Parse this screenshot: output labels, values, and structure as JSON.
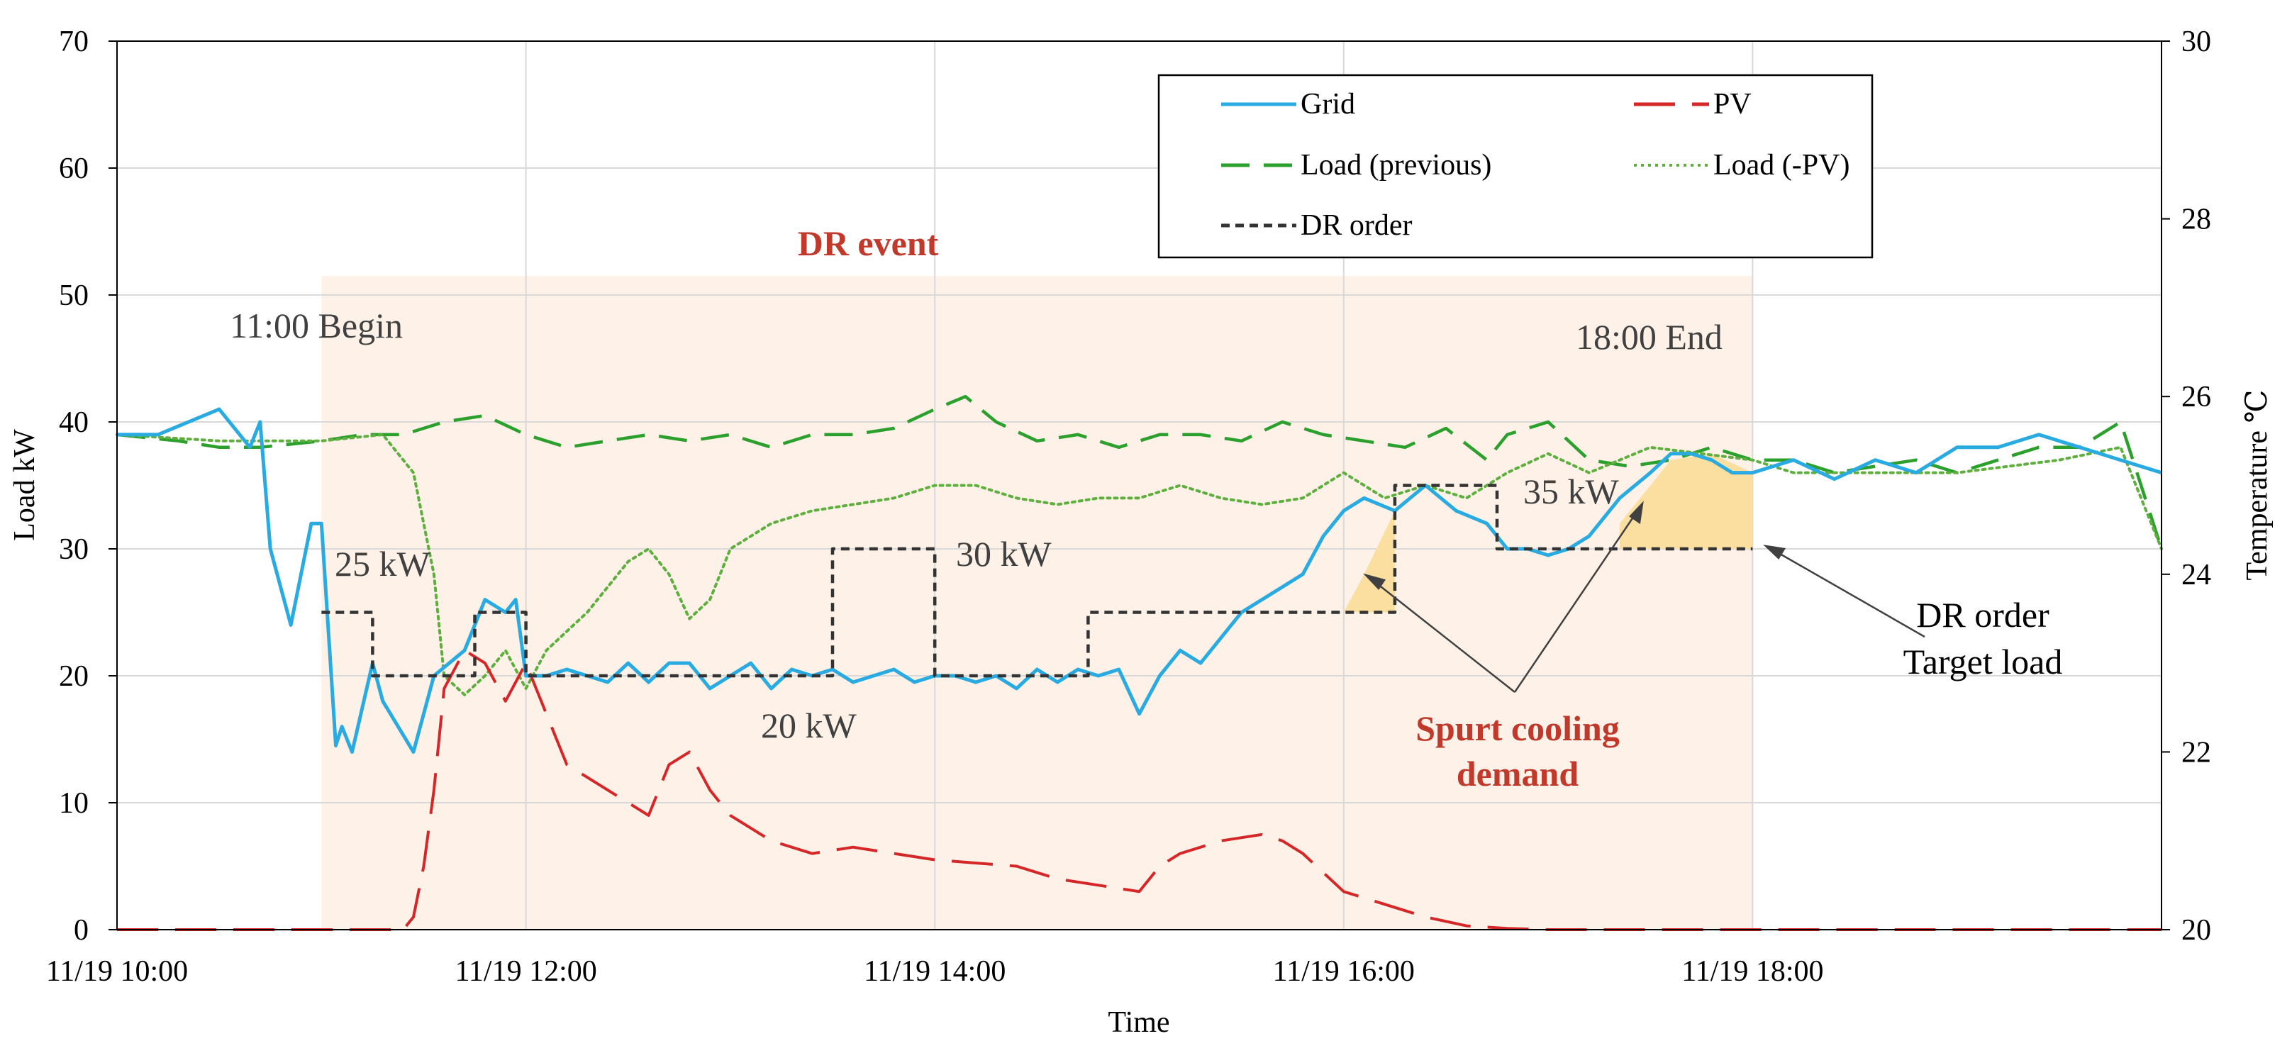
{
  "chart_data": {
    "type": "line",
    "xlabel": "Time",
    "ylabel": "Load kW",
    "y2label": "Temperature ℃",
    "xlim": [
      10.0,
      20.0
    ],
    "ylim": [
      0,
      70
    ],
    "y2lim": [
      20,
      30
    ],
    "x_ticks": [
      {
        "t": 10,
        "label": "11/19 10:00"
      },
      {
        "t": 12,
        "label": "11/19 12:00"
      },
      {
        "t": 14,
        "label": "11/19 14:00"
      },
      {
        "t": 16,
        "label": "11/19 16:00"
      },
      {
        "t": 18,
        "label": "11/19 18:00"
      }
    ],
    "y_ticks": [
      "0",
      "10",
      "20",
      "30",
      "40",
      "50",
      "60",
      "70"
    ],
    "y2_ticks": [
      "20",
      "22",
      "24",
      "26",
      "28",
      "30"
    ],
    "grid": true,
    "legend_position": "top-right",
    "series": [
      {
        "key": "grid",
        "name": "Grid",
        "color": "#29ABE2",
        "style": "solid",
        "t": [
          10.0,
          10.2,
          10.5,
          10.65,
          10.7,
          10.75,
          10.85,
          10.95,
          11.0,
          11.07,
          11.1,
          11.15,
          11.25,
          11.3,
          11.45,
          11.55,
          11.7,
          11.8,
          11.9,
          11.95,
          12.0,
          12.1,
          12.2,
          12.3,
          12.4,
          12.5,
          12.6,
          12.7,
          12.8,
          12.9,
          13.0,
          13.1,
          13.2,
          13.3,
          13.4,
          13.5,
          13.6,
          13.7,
          13.8,
          13.9,
          14.0,
          14.1,
          14.2,
          14.3,
          14.4,
          14.5,
          14.6,
          14.7,
          14.8,
          14.9,
          15.0,
          15.1,
          15.2,
          15.3,
          15.5,
          15.6,
          15.7,
          15.8,
          15.9,
          16.0,
          16.1,
          16.25,
          16.4,
          16.55,
          16.7,
          16.8,
          16.9,
          17.0,
          17.1,
          17.2,
          17.35,
          17.5,
          17.6,
          17.7,
          17.8,
          17.9,
          18.0,
          18.2,
          18.4,
          18.6,
          18.8,
          19.0,
          19.2,
          19.4,
          19.6,
          19.8,
          20.0
        ],
        "v": [
          39,
          39,
          41,
          38,
          40,
          30,
          24,
          32,
          32,
          14.5,
          16,
          14,
          21,
          18,
          14,
          20,
          22,
          26,
          25,
          26,
          20,
          20,
          20.5,
          20,
          19.5,
          21,
          19.5,
          21,
          21,
          19,
          20,
          21,
          19,
          20.5,
          20,
          20.5,
          19.5,
          20,
          20.5,
          19.5,
          20,
          20,
          19.5,
          20,
          19,
          20.5,
          19.5,
          20.5,
          20,
          20.5,
          17,
          20,
          22,
          21,
          25,
          26,
          27,
          28,
          31,
          33,
          34,
          33,
          35,
          33,
          32,
          30,
          30,
          29.5,
          30,
          31,
          34,
          36,
          37.5,
          37.5,
          37,
          36,
          36,
          37,
          35.5,
          37,
          36,
          38,
          38,
          39,
          38,
          37,
          36
        ]
      },
      {
        "key": "pv",
        "name": "PV",
        "color": "#D62728",
        "style": "longdash",
        "t": [
          10.0,
          10.5,
          11.0,
          11.4,
          11.45,
          11.5,
          11.55,
          11.6,
          11.7,
          11.8,
          11.9,
          12.0,
          12.1,
          12.2,
          12.4,
          12.6,
          12.7,
          12.8,
          12.9,
          13.0,
          13.2,
          13.4,
          13.6,
          14.0,
          14.4,
          14.6,
          14.8,
          15.0,
          15.1,
          15.2,
          15.4,
          15.6,
          15.7,
          15.8,
          15.9,
          16.0,
          16.2,
          16.4,
          16.6,
          16.8,
          17.0,
          17.5,
          18.0,
          20.0
        ],
        "v": [
          0,
          0,
          0,
          0,
          1,
          5,
          11,
          19,
          22,
          21,
          18,
          21,
          17,
          13,
          11,
          9,
          13,
          14,
          11,
          9,
          7,
          6,
          6.5,
          5.5,
          5,
          4,
          3.5,
          3,
          5,
          6,
          7,
          7.5,
          7,
          6,
          4.5,
          3,
          2,
          1,
          0.3,
          0.1,
          0,
          0,
          0,
          0
        ]
      },
      {
        "key": "load_prev",
        "name": "Load (previous)",
        "color": "#2CA02C",
        "style": "dash",
        "t": [
          10.0,
          10.3,
          10.5,
          10.7,
          11.0,
          11.2,
          11.4,
          11.6,
          11.8,
          12.0,
          12.2,
          12.4,
          12.6,
          12.8,
          13.0,
          13.2,
          13.4,
          13.6,
          13.8,
          14.0,
          14.15,
          14.3,
          14.5,
          14.7,
          14.9,
          15.1,
          15.3,
          15.5,
          15.7,
          15.9,
          16.1,
          16.3,
          16.5,
          16.7,
          16.8,
          17.0,
          17.2,
          17.4,
          17.6,
          17.8,
          18.0,
          18.2,
          18.4,
          18.6,
          18.8,
          19.0,
          19.2,
          19.4,
          19.6,
          19.8,
          19.9,
          20.0
        ],
        "v": [
          39,
          38.5,
          38,
          38,
          38.5,
          39,
          39,
          40,
          40.5,
          39,
          38,
          38.5,
          39,
          38.5,
          39,
          38,
          39,
          39,
          39.5,
          41,
          42,
          40,
          38.5,
          39,
          38,
          39,
          39,
          38.5,
          40,
          39,
          38.5,
          38,
          39.5,
          37,
          39,
          40,
          37,
          36.5,
          37,
          38,
          37,
          37,
          36,
          36.5,
          37,
          36,
          37,
          38,
          38,
          40,
          35,
          30
        ]
      },
      {
        "key": "load_pv",
        "name": "Load (-PV)",
        "color": "#5FAF3F",
        "style": "dot",
        "t": [
          10.0,
          10.5,
          11.0,
          11.3,
          11.45,
          11.55,
          11.6,
          11.7,
          11.8,
          11.9,
          12.0,
          12.1,
          12.3,
          12.5,
          12.6,
          12.7,
          12.8,
          12.9,
          13.0,
          13.2,
          13.4,
          13.6,
          13.8,
          14.0,
          14.2,
          14.4,
          14.6,
          14.8,
          15.0,
          15.2,
          15.4,
          15.6,
          15.8,
          16.0,
          16.2,
          16.4,
          16.6,
          16.8,
          17.0,
          17.2,
          17.5,
          18.0,
          18.2,
          18.5,
          19.0,
          19.5,
          19.8,
          20.0
        ],
        "v": [
          39,
          38.5,
          38.5,
          39,
          36,
          28,
          20,
          18.5,
          20,
          22,
          19,
          22,
          25,
          29,
          30,
          28,
          24.5,
          26,
          30,
          32,
          33,
          33.5,
          34,
          35,
          35,
          34,
          33.5,
          34,
          34,
          35,
          34,
          33.5,
          34,
          36,
          34,
          35,
          34,
          36,
          37.5,
          36,
          38,
          37,
          36,
          36,
          36,
          37,
          38,
          30
        ]
      },
      {
        "key": "dr_order",
        "name": "DR order",
        "color": "#333333",
        "style": "shortdash",
        "t": [
          11.0,
          11.25,
          11.25,
          11.75,
          11.75,
          12.0,
          12.0,
          13.5,
          13.5,
          14.0,
          14.0,
          14.75,
          14.75,
          16.25,
          16.25,
          16.75,
          16.75,
          18.0
        ],
        "v": [
          25,
          25,
          20,
          20,
          25,
          25,
          20,
          20,
          30,
          30,
          20,
          20,
          25,
          25,
          35,
          35,
          30,
          30
        ]
      }
    ],
    "shaded_region": {
      "t_start": 11.0,
      "t_end": 18.0,
      "label": "DR event",
      "color": "#FDF1E8"
    },
    "spurt_areas": [
      {
        "t": [
          16.0,
          16.1,
          16.25,
          16.25,
          16.1
        ],
        "v": [
          25,
          28,
          33,
          25,
          25
        ]
      },
      {
        "t": [
          17.35,
          17.5,
          17.6,
          17.8,
          18.0,
          18.0,
          17.35
        ],
        "v": [
          32,
          35,
          37,
          37.5,
          36,
          30,
          30
        ]
      }
    ],
    "annotations": [
      {
        "key": "begin",
        "text": "11:00 Begin"
      },
      {
        "key": "end",
        "text": "18:00 End"
      },
      {
        "key": "dr_event",
        "text": "DR event"
      },
      {
        "key": "k25",
        "text": "25 kW"
      },
      {
        "key": "k20",
        "text": "20 kW"
      },
      {
        "key": "k30",
        "text": "30 kW"
      },
      {
        "key": "k35",
        "text": "35 kW"
      },
      {
        "key": "spurt1",
        "text": "Spurt cooling"
      },
      {
        "key": "spurt2",
        "text": "demand"
      },
      {
        "key": "dr_order1",
        "text": "DR order"
      },
      {
        "key": "dr_order2",
        "text": "Target load"
      }
    ],
    "legend": [
      "Grid",
      "PV",
      "Load (previous)",
      "Load (-PV)",
      "DR order"
    ]
  },
  "colors": {
    "axis": "#000000",
    "grid": "#D9D9D9",
    "annotation_red": "#C0392B",
    "annotation_gray": "#404040",
    "spurt_fill": "#FBDFA0"
  }
}
